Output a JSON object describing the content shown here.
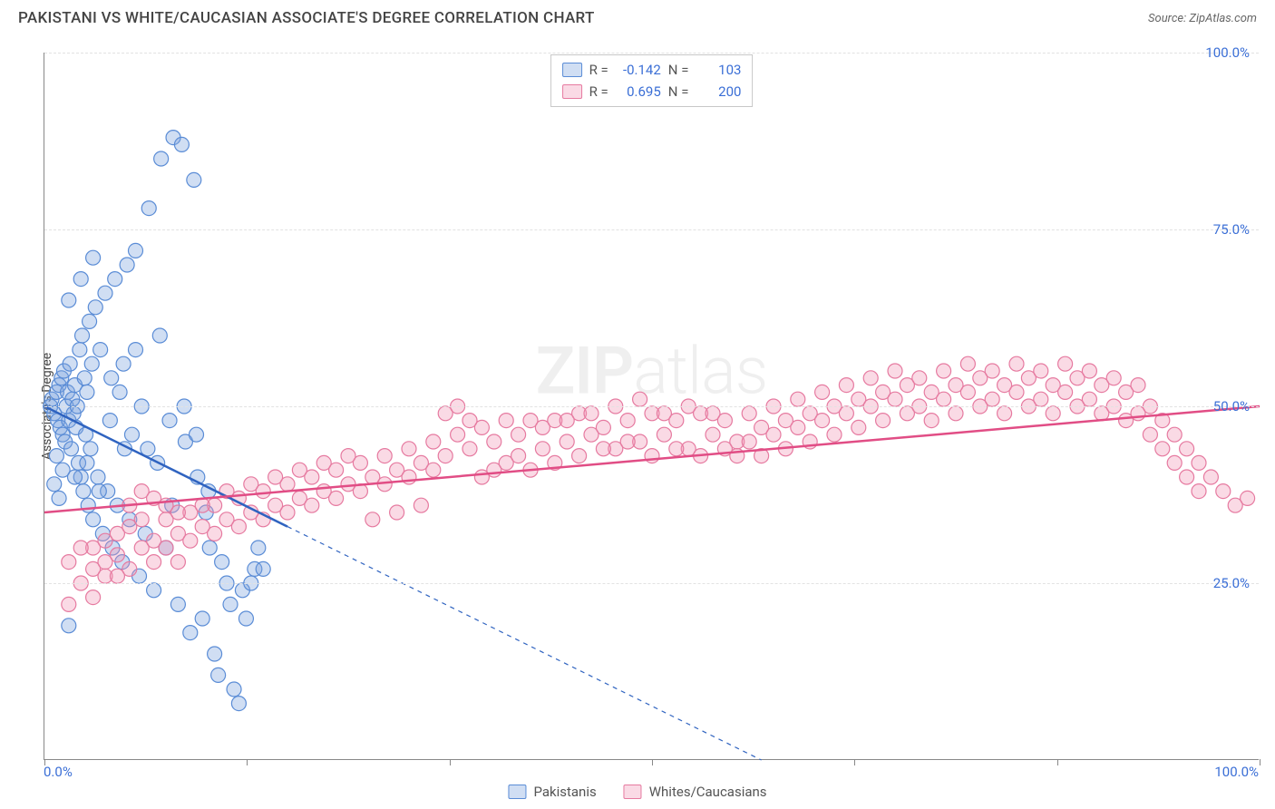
{
  "header": {
    "title": "PAKISTANI VS WHITE/CAUCASIAN ASSOCIATE'S DEGREE CORRELATION CHART",
    "source": "Source: ZipAtlas.com"
  },
  "watermark": {
    "part1": "ZIP",
    "part2": "atlas"
  },
  "chart": {
    "type": "scatter",
    "ylabel": "Associate's Degree",
    "xlim": [
      0,
      100
    ],
    "ylim": [
      0,
      100
    ],
    "yticks": [
      25,
      50,
      75,
      100
    ],
    "ytick_labels": [
      "25.0%",
      "50.0%",
      "75.0%",
      "100.0%"
    ],
    "xlabels": {
      "min": "0.0%",
      "max": "100.0%"
    },
    "xtick_positions": [
      0,
      16.67,
      33.33,
      50,
      66.67,
      83.33,
      100
    ],
    "grid_color": "#e2e2e2",
    "axis_color": "#888888",
    "tick_label_color": "#3b6fd6",
    "marker_radius": 8,
    "marker_stroke_width": 1.2,
    "trend_line_width": 2.5,
    "trend_dash": "5,5",
    "series": [
      {
        "name": "Pakistanis",
        "fill": "rgba(120,160,220,0.35)",
        "stroke": "#5a8cd6",
        "trend_color": "#2f63c0",
        "trend": {
          "solid_x": [
            0,
            20
          ],
          "solid_y": [
            50,
            33
          ],
          "dash_x": [
            20,
            59
          ],
          "dash_y": [
            33,
            0
          ]
        },
        "R": "-0.142",
        "N": "103",
        "points": [
          [
            0.5,
            50
          ],
          [
            0.6,
            51
          ],
          [
            0.8,
            49
          ],
          [
            1,
            52
          ],
          [
            1.1,
            48
          ],
          [
            1.2,
            53
          ],
          [
            1.3,
            47
          ],
          [
            1.4,
            54
          ],
          [
            1.5,
            46
          ],
          [
            1.6,
            55
          ],
          [
            1.7,
            45
          ],
          [
            1.8,
            50
          ],
          [
            1.9,
            52
          ],
          [
            2,
            48
          ],
          [
            2.1,
            56
          ],
          [
            2.2,
            44
          ],
          [
            2.3,
            51
          ],
          [
            2.4,
            49
          ],
          [
            2.5,
            53
          ],
          [
            2.6,
            47
          ],
          [
            2.7,
            50
          ],
          [
            2.8,
            42
          ],
          [
            2.9,
            58
          ],
          [
            3,
            40
          ],
          [
            3.1,
            60
          ],
          [
            3.2,
            38
          ],
          [
            3.3,
            54
          ],
          [
            3.4,
            46
          ],
          [
            3.5,
            52
          ],
          [
            3.6,
            36
          ],
          [
            3.7,
            62
          ],
          [
            3.8,
            44
          ],
          [
            3.9,
            56
          ],
          [
            4,
            34
          ],
          [
            4.2,
            64
          ],
          [
            4.4,
            40
          ],
          [
            4.6,
            58
          ],
          [
            4.8,
            32
          ],
          [
            5,
            66
          ],
          [
            5.2,
            38
          ],
          [
            5.4,
            48
          ],
          [
            5.6,
            30
          ],
          [
            5.8,
            68
          ],
          [
            6,
            36
          ],
          [
            6.2,
            52
          ],
          [
            6.4,
            28
          ],
          [
            6.6,
            44
          ],
          [
            6.8,
            70
          ],
          [
            7,
            34
          ],
          [
            7.2,
            46
          ],
          [
            7.5,
            72
          ],
          [
            7.8,
            26
          ],
          [
            8,
            50
          ],
          [
            8.3,
            32
          ],
          [
            8.6,
            78
          ],
          [
            9,
            24
          ],
          [
            9.3,
            42
          ],
          [
            9.6,
            85
          ],
          [
            10,
            30
          ],
          [
            10.3,
            48
          ],
          [
            10.6,
            88
          ],
          [
            11,
            22
          ],
          [
            11.3,
            87
          ],
          [
            11.6,
            45
          ],
          [
            12,
            18
          ],
          [
            12.3,
            82
          ],
          [
            12.6,
            40
          ],
          [
            13,
            20
          ],
          [
            13.3,
            35
          ],
          [
            13.6,
            30
          ],
          [
            14,
            15
          ],
          [
            14.3,
            12
          ],
          [
            14.6,
            28
          ],
          [
            15,
            25
          ],
          [
            15.3,
            22
          ],
          [
            15.6,
            10
          ],
          [
            16,
            8
          ],
          [
            16.3,
            24
          ],
          [
            16.6,
            20
          ],
          [
            17,
            25
          ],
          [
            17.3,
            27
          ],
          [
            17.6,
            30
          ],
          [
            18,
            27
          ],
          [
            2,
            65
          ],
          [
            3,
            68
          ],
          [
            4,
            71
          ],
          [
            2.5,
            40
          ],
          [
            3.5,
            42
          ],
          [
            4.5,
            38
          ],
          [
            5.5,
            54
          ],
          [
            6.5,
            56
          ],
          [
            7.5,
            58
          ],
          [
            8.5,
            44
          ],
          [
            9.5,
            60
          ],
          [
            10.5,
            36
          ],
          [
            11.5,
            50
          ],
          [
            12.5,
            46
          ],
          [
            13.5,
            38
          ],
          [
            1,
            43
          ],
          [
            1.5,
            41
          ],
          [
            0.8,
            39
          ],
          [
            1.2,
            37
          ],
          [
            2,
            19
          ]
        ]
      },
      {
        "name": "Whites/Caucasians",
        "fill": "rgba(240,150,180,0.35)",
        "stroke": "#e67aa0",
        "trend_color": "#e14d85",
        "trend": {
          "solid_x": [
            0,
            100
          ],
          "solid_y": [
            35,
            50
          ],
          "dash_x": null,
          "dash_y": null
        },
        "R": "0.695",
        "N": "200",
        "points": [
          [
            2,
            22
          ],
          [
            3,
            25
          ],
          [
            4,
            30
          ],
          [
            5,
            28
          ],
          [
            6,
            32
          ],
          [
            7,
            33
          ],
          [
            8,
            30
          ],
          [
            9,
            31
          ],
          [
            10,
            34
          ],
          [
            11,
            32
          ],
          [
            12,
            35
          ],
          [
            13,
            33
          ],
          [
            14,
            36
          ],
          [
            15,
            34
          ],
          [
            16,
            37
          ],
          [
            17,
            35
          ],
          [
            18,
            38
          ],
          [
            19,
            36
          ],
          [
            20,
            39
          ],
          [
            21,
            37
          ],
          [
            22,
            40
          ],
          [
            23,
            38
          ],
          [
            24,
            41
          ],
          [
            25,
            39
          ],
          [
            26,
            42
          ],
          [
            27,
            40
          ],
          [
            28,
            43
          ],
          [
            29,
            41
          ],
          [
            30,
            44
          ],
          [
            31,
            42
          ],
          [
            32,
            45
          ],
          [
            33,
            43
          ],
          [
            34,
            46
          ],
          [
            35,
            44
          ],
          [
            36,
            47
          ],
          [
            37,
            45
          ],
          [
            38,
            48
          ],
          [
            39,
            46
          ],
          [
            40,
            48
          ],
          [
            41,
            44
          ],
          [
            42,
            48
          ],
          [
            43,
            45
          ],
          [
            44,
            49
          ],
          [
            45,
            46
          ],
          [
            46,
            47
          ],
          [
            47,
            44
          ],
          [
            48,
            48
          ],
          [
            49,
            45
          ],
          [
            50,
            49
          ],
          [
            51,
            46
          ],
          [
            52,
            48
          ],
          [
            53,
            44
          ],
          [
            54,
            49
          ],
          [
            55,
            46
          ],
          [
            56,
            48
          ],
          [
            57,
            45
          ],
          [
            58,
            49
          ],
          [
            59,
            47
          ],
          [
            60,
            50
          ],
          [
            61,
            48
          ],
          [
            62,
            51
          ],
          [
            63,
            49
          ],
          [
            64,
            52
          ],
          [
            65,
            50
          ],
          [
            66,
            53
          ],
          [
            67,
            51
          ],
          [
            68,
            54
          ],
          [
            69,
            52
          ],
          [
            70,
            55
          ],
          [
            71,
            53
          ],
          [
            72,
            54
          ],
          [
            73,
            52
          ],
          [
            74,
            55
          ],
          [
            75,
            53
          ],
          [
            76,
            56
          ],
          [
            77,
            54
          ],
          [
            78,
            55
          ],
          [
            79,
            53
          ],
          [
            80,
            56
          ],
          [
            81,
            54
          ],
          [
            82,
            55
          ],
          [
            83,
            53
          ],
          [
            84,
            56
          ],
          [
            85,
            54
          ],
          [
            86,
            55
          ],
          [
            87,
            53
          ],
          [
            88,
            54
          ],
          [
            89,
            52
          ],
          [
            90,
            53
          ],
          [
            91,
            50
          ],
          [
            92,
            48
          ],
          [
            93,
            46
          ],
          [
            94,
            44
          ],
          [
            95,
            42
          ],
          [
            96,
            40
          ],
          [
            97,
            38
          ],
          [
            98,
            36
          ],
          [
            99,
            37
          ],
          [
            4,
            23
          ],
          [
            5,
            26
          ],
          [
            6,
            29
          ],
          [
            7,
            27
          ],
          [
            8,
            34
          ],
          [
            9,
            28
          ],
          [
            10,
            30
          ],
          [
            11,
            35
          ],
          [
            12,
            31
          ],
          [
            13,
            36
          ],
          [
            14,
            32
          ],
          [
            15,
            38
          ],
          [
            16,
            33
          ],
          [
            17,
            39
          ],
          [
            18,
            34
          ],
          [
            19,
            40
          ],
          [
            20,
            35
          ],
          [
            21,
            41
          ],
          [
            22,
            36
          ],
          [
            23,
            42
          ],
          [
            24,
            37
          ],
          [
            25,
            43
          ],
          [
            26,
            38
          ],
          [
            27,
            34
          ],
          [
            28,
            39
          ],
          [
            29,
            35
          ],
          [
            30,
            40
          ],
          [
            31,
            36
          ],
          [
            32,
            41
          ],
          [
            33,
            49
          ],
          [
            34,
            50
          ],
          [
            35,
            48
          ],
          [
            36,
            40
          ],
          [
            37,
            41
          ],
          [
            38,
            42
          ],
          [
            39,
            43
          ],
          [
            40,
            41
          ],
          [
            41,
            47
          ],
          [
            42,
            42
          ],
          [
            43,
            48
          ],
          [
            44,
            43
          ],
          [
            45,
            49
          ],
          [
            46,
            44
          ],
          [
            47,
            50
          ],
          [
            48,
            45
          ],
          [
            49,
            51
          ],
          [
            50,
            43
          ],
          [
            51,
            49
          ],
          [
            52,
            44
          ],
          [
            53,
            50
          ],
          [
            54,
            43
          ],
          [
            55,
            49
          ],
          [
            56,
            44
          ],
          [
            57,
            43
          ],
          [
            58,
            45
          ],
          [
            59,
            43
          ],
          [
            60,
            46
          ],
          [
            61,
            44
          ],
          [
            62,
            47
          ],
          [
            63,
            45
          ],
          [
            64,
            48
          ],
          [
            65,
            46
          ],
          [
            66,
            49
          ],
          [
            67,
            47
          ],
          [
            68,
            50
          ],
          [
            69,
            48
          ],
          [
            70,
            51
          ],
          [
            71,
            49
          ],
          [
            72,
            50
          ],
          [
            73,
            48
          ],
          [
            74,
            51
          ],
          [
            75,
            49
          ],
          [
            76,
            52
          ],
          [
            77,
            50
          ],
          [
            78,
            51
          ],
          [
            79,
            49
          ],
          [
            80,
            52
          ],
          [
            81,
            50
          ],
          [
            82,
            51
          ],
          [
            83,
            49
          ],
          [
            84,
            52
          ],
          [
            85,
            50
          ],
          [
            86,
            51
          ],
          [
            87,
            49
          ],
          [
            88,
            50
          ],
          [
            89,
            48
          ],
          [
            90,
            49
          ],
          [
            91,
            46
          ],
          [
            92,
            44
          ],
          [
            93,
            42
          ],
          [
            94,
            40
          ],
          [
            95,
            38
          ],
          [
            2,
            28
          ],
          [
            3,
            30
          ],
          [
            4,
            27
          ],
          [
            5,
            31
          ],
          [
            6,
            26
          ],
          [
            7,
            36
          ],
          [
            8,
            38
          ],
          [
            9,
            37
          ],
          [
            10,
            36
          ],
          [
            11,
            28
          ]
        ]
      }
    ]
  },
  "legend": {
    "top": [
      {
        "swatch_fill": "rgba(120,160,220,0.35)",
        "swatch_stroke": "#5a8cd6",
        "R_label": "R =",
        "R": "-0.142",
        "N_label": "N =",
        "N": "103"
      },
      {
        "swatch_fill": "rgba(240,150,180,0.35)",
        "swatch_stroke": "#e67aa0",
        "R_label": "R =",
        "R": "0.695",
        "N_label": "N =",
        "N": "200"
      }
    ],
    "bottom": [
      {
        "swatch_fill": "rgba(120,160,220,0.35)",
        "swatch_stroke": "#5a8cd6",
        "label": "Pakistanis"
      },
      {
        "swatch_fill": "rgba(240,150,180,0.35)",
        "swatch_stroke": "#e67aa0",
        "label": "Whites/Caucasians"
      }
    ]
  }
}
